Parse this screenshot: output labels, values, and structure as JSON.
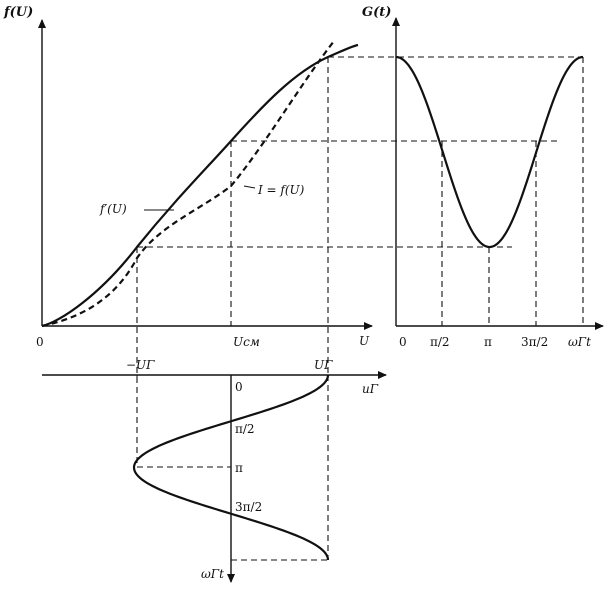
{
  "labels": {
    "f_axis": "f(U)",
    "G_axis": "G(t)",
    "U_axis": "U",
    "uG_axis": "uΓ",
    "wt_axis_right": "ωΓt",
    "wt_axis_bottom": "ωΓt",
    "origin_left": "0",
    "origin_right": "0",
    "U_cm": "Uсм",
    "neg_UG": "−UΓ",
    "UG": "UΓ",
    "fprime": "f′(U)",
    "I_f": "I = f(U)",
    "zero_bottom": "0",
    "pi_half_bottom": "π/2",
    "pi_bottom": "π",
    "three_pi_half_bottom": "3π/2",
    "pi_half_right": "π/2",
    "pi_right": "π",
    "three_pi_half_right": "3π/2"
  }
}
